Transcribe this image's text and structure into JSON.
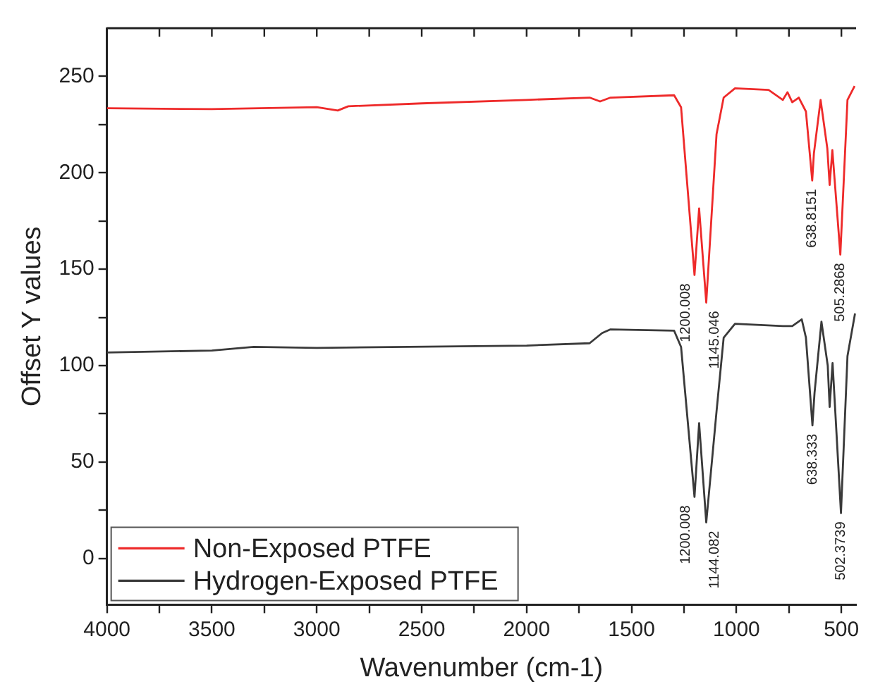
{
  "chart_data": {
    "type": "line",
    "xlabel": "Wavenumber (cm-1)",
    "ylabel": "Offset Y values",
    "xlim": [
      4000,
      430
    ],
    "ylim": [
      -24,
      275
    ],
    "xticks": [
      4000,
      {
        "value": 3750,
        "label": null
      },
      3500,
      {
        "value": 3250,
        "label": null
      },
      3000,
      {
        "value": 2750,
        "label": null
      },
      2500,
      {
        "value": 2250,
        "label": null
      },
      2000,
      {
        "value": 1750,
        "label": null
      },
      1500,
      {
        "value": 1250,
        "label": null
      },
      1000,
      {
        "value": 750,
        "label": null
      },
      500
    ],
    "yticks": [
      0,
      {
        "value": 25,
        "label": null
      },
      50,
      {
        "value": 75,
        "label": null
      },
      100,
      {
        "value": 125,
        "label": null
      },
      150,
      {
        "value": 175,
        "label": null
      },
      200,
      {
        "value": 225,
        "label": null
      },
      250
    ],
    "legend": "bottom left",
    "marker": "none",
    "line_style": "solid",
    "grid": false,
    "series": [
      {
        "name": "Non-Exposed PTFE",
        "color": "#ee2a2a",
        "x": [
          4000,
          3500,
          3000,
          2900,
          2850,
          2500,
          2000,
          1700,
          1650,
          1600,
          1297,
          1264,
          1200,
          1178,
          1144,
          1095,
          1061,
          1007,
          847,
          779,
          757,
          734,
          703,
          669,
          639,
          631,
          599,
          567,
          556,
          543,
          505,
          471,
          437
        ],
        "values": [
          233.5,
          233,
          234,
          232.3,
          234.5,
          236,
          237.8,
          239,
          237,
          239,
          240.2,
          234,
          147,
          181.5,
          132.7,
          220,
          239,
          243.8,
          243,
          237.8,
          241.8,
          236.6,
          239,
          231.8,
          196,
          210,
          237.8,
          212.6,
          193.7,
          211.7,
          157.6,
          237.8,
          245
        ]
      },
      {
        "name": "Hydrogen-Exposed PTFE",
        "color": "#3a3a3a",
        "x": [
          4000,
          3500,
          3300,
          3000,
          2000,
          1700,
          1640,
          1600,
          1297,
          1264,
          1200,
          1178,
          1144,
          1095,
          1061,
          1007,
          779,
          734,
          689,
          669,
          638,
          628,
          595,
          565,
          556,
          542,
          502,
          471,
          435
        ],
        "values": [
          106.8,
          107.8,
          109.7,
          109.2,
          110.4,
          111.6,
          116.9,
          118.8,
          118.1,
          109.7,
          31.9,
          70.2,
          18.7,
          76.2,
          114.5,
          121.7,
          120.5,
          120.5,
          124,
          114.5,
          69,
          85.8,
          122.8,
          100,
          78.6,
          101.3,
          23.5,
          104.9,
          127
        ]
      }
    ],
    "annotations": [
      {
        "text": "1200.008",
        "x": 1200,
        "y": 147
      },
      {
        "text": "1145.046",
        "x": 1145,
        "y": 132.7
      },
      {
        "text": "638.8151",
        "x": 638.8151,
        "y": 196
      },
      {
        "text": "505.2868",
        "x": 505.2868,
        "y": 157.6
      },
      {
        "text": "1200.008",
        "x": 1200,
        "y": 31.9
      },
      {
        "text": "1144.082",
        "x": 1144.082,
        "y": 18.7
      },
      {
        "text": "638.333",
        "x": 638.333,
        "y": 69
      },
      {
        "text": "502.3739",
        "x": 502.3739,
        "y": 23.5
      }
    ]
  }
}
